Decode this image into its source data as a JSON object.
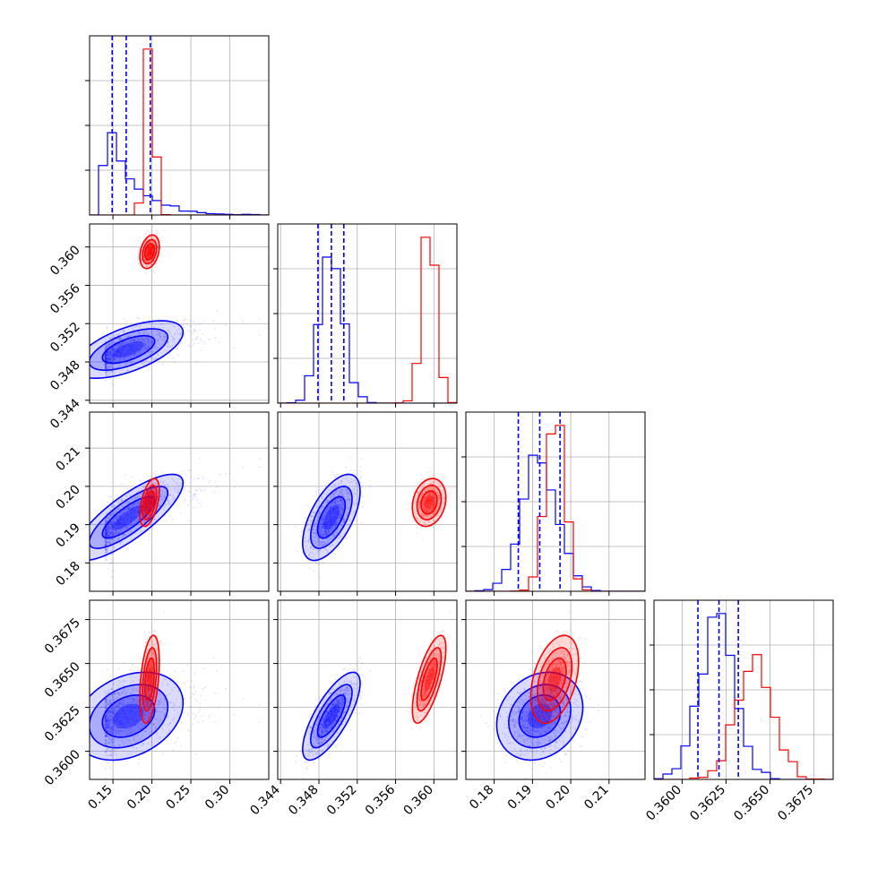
{
  "colors": {
    "blue": "#0000ff",
    "red": "#ff0000",
    "grid": "#b0b0b0",
    "axis": "#000000"
  },
  "chart_data": {
    "type": "corner",
    "n_params": 4,
    "series": [
      {
        "color": "blue",
        "mean": [
          0.17,
          0.3493,
          0.1919,
          0.362
        ],
        "sd": [
          0.028,
          0.0012,
          0.0045,
          0.001
        ],
        "quantiles": [
          [
            0.149,
            0.167,
            0.198
          ],
          [
            0.3479,
            0.3493,
            0.3506
          ],
          [
            0.1863,
            0.1919,
            0.1972
          ],
          [
            0.3609,
            0.3621,
            0.3632
          ]
        ],
        "corr": [
          [
            1,
            0.6,
            0.8,
            0.3
          ],
          [
            0.6,
            1,
            0.6,
            0.75
          ],
          [
            0.8,
            0.6,
            1,
            0.2
          ],
          [
            0.3,
            0.75,
            0.2,
            1
          ]
        ]
      },
      {
        "color": "red",
        "mean": [
          0.197,
          0.3595,
          0.1958,
          0.3641
        ],
        "sd": [
          0.005,
          0.0007,
          0.0025,
          0.001
        ],
        "corr": [
          [
            1,
            0.3,
            0.5,
            0.4
          ],
          [
            0.3,
            1,
            0.2,
            0.7
          ],
          [
            0.5,
            0.2,
            1,
            0.4
          ],
          [
            0.4,
            0.7,
            0.4,
            1
          ]
        ]
      }
    ],
    "axes": [
      {
        "range": [
          0.12,
          0.35
        ],
        "ticks": [
          0.15,
          0.2,
          0.25,
          0.3
        ],
        "labels": [
          "0.15",
          "0.20",
          "0.25",
          "0.30"
        ]
      },
      {
        "range": [
          0.3437,
          0.3624
        ],
        "ticks": [
          0.344,
          0.348,
          0.352,
          0.356,
          0.36
        ],
        "labels": [
          "0.344",
          "0.348",
          "0.352",
          "0.356",
          "0.360"
        ]
      },
      {
        "range": [
          0.1726,
          0.2194
        ],
        "ticks": [
          0.18,
          0.19,
          0.2,
          0.21
        ],
        "labels": [
          "0.18",
          "0.19",
          "0.20",
          "0.21"
        ]
      },
      {
        "range": [
          0.3584,
          0.3686
        ],
        "ticks": [
          0.36,
          0.3625,
          0.365,
          0.3675
        ],
        "labels": [
          "0.3600",
          "0.3625",
          "0.3650",
          "0.3675"
        ]
      }
    ],
    "grid": true
  }
}
